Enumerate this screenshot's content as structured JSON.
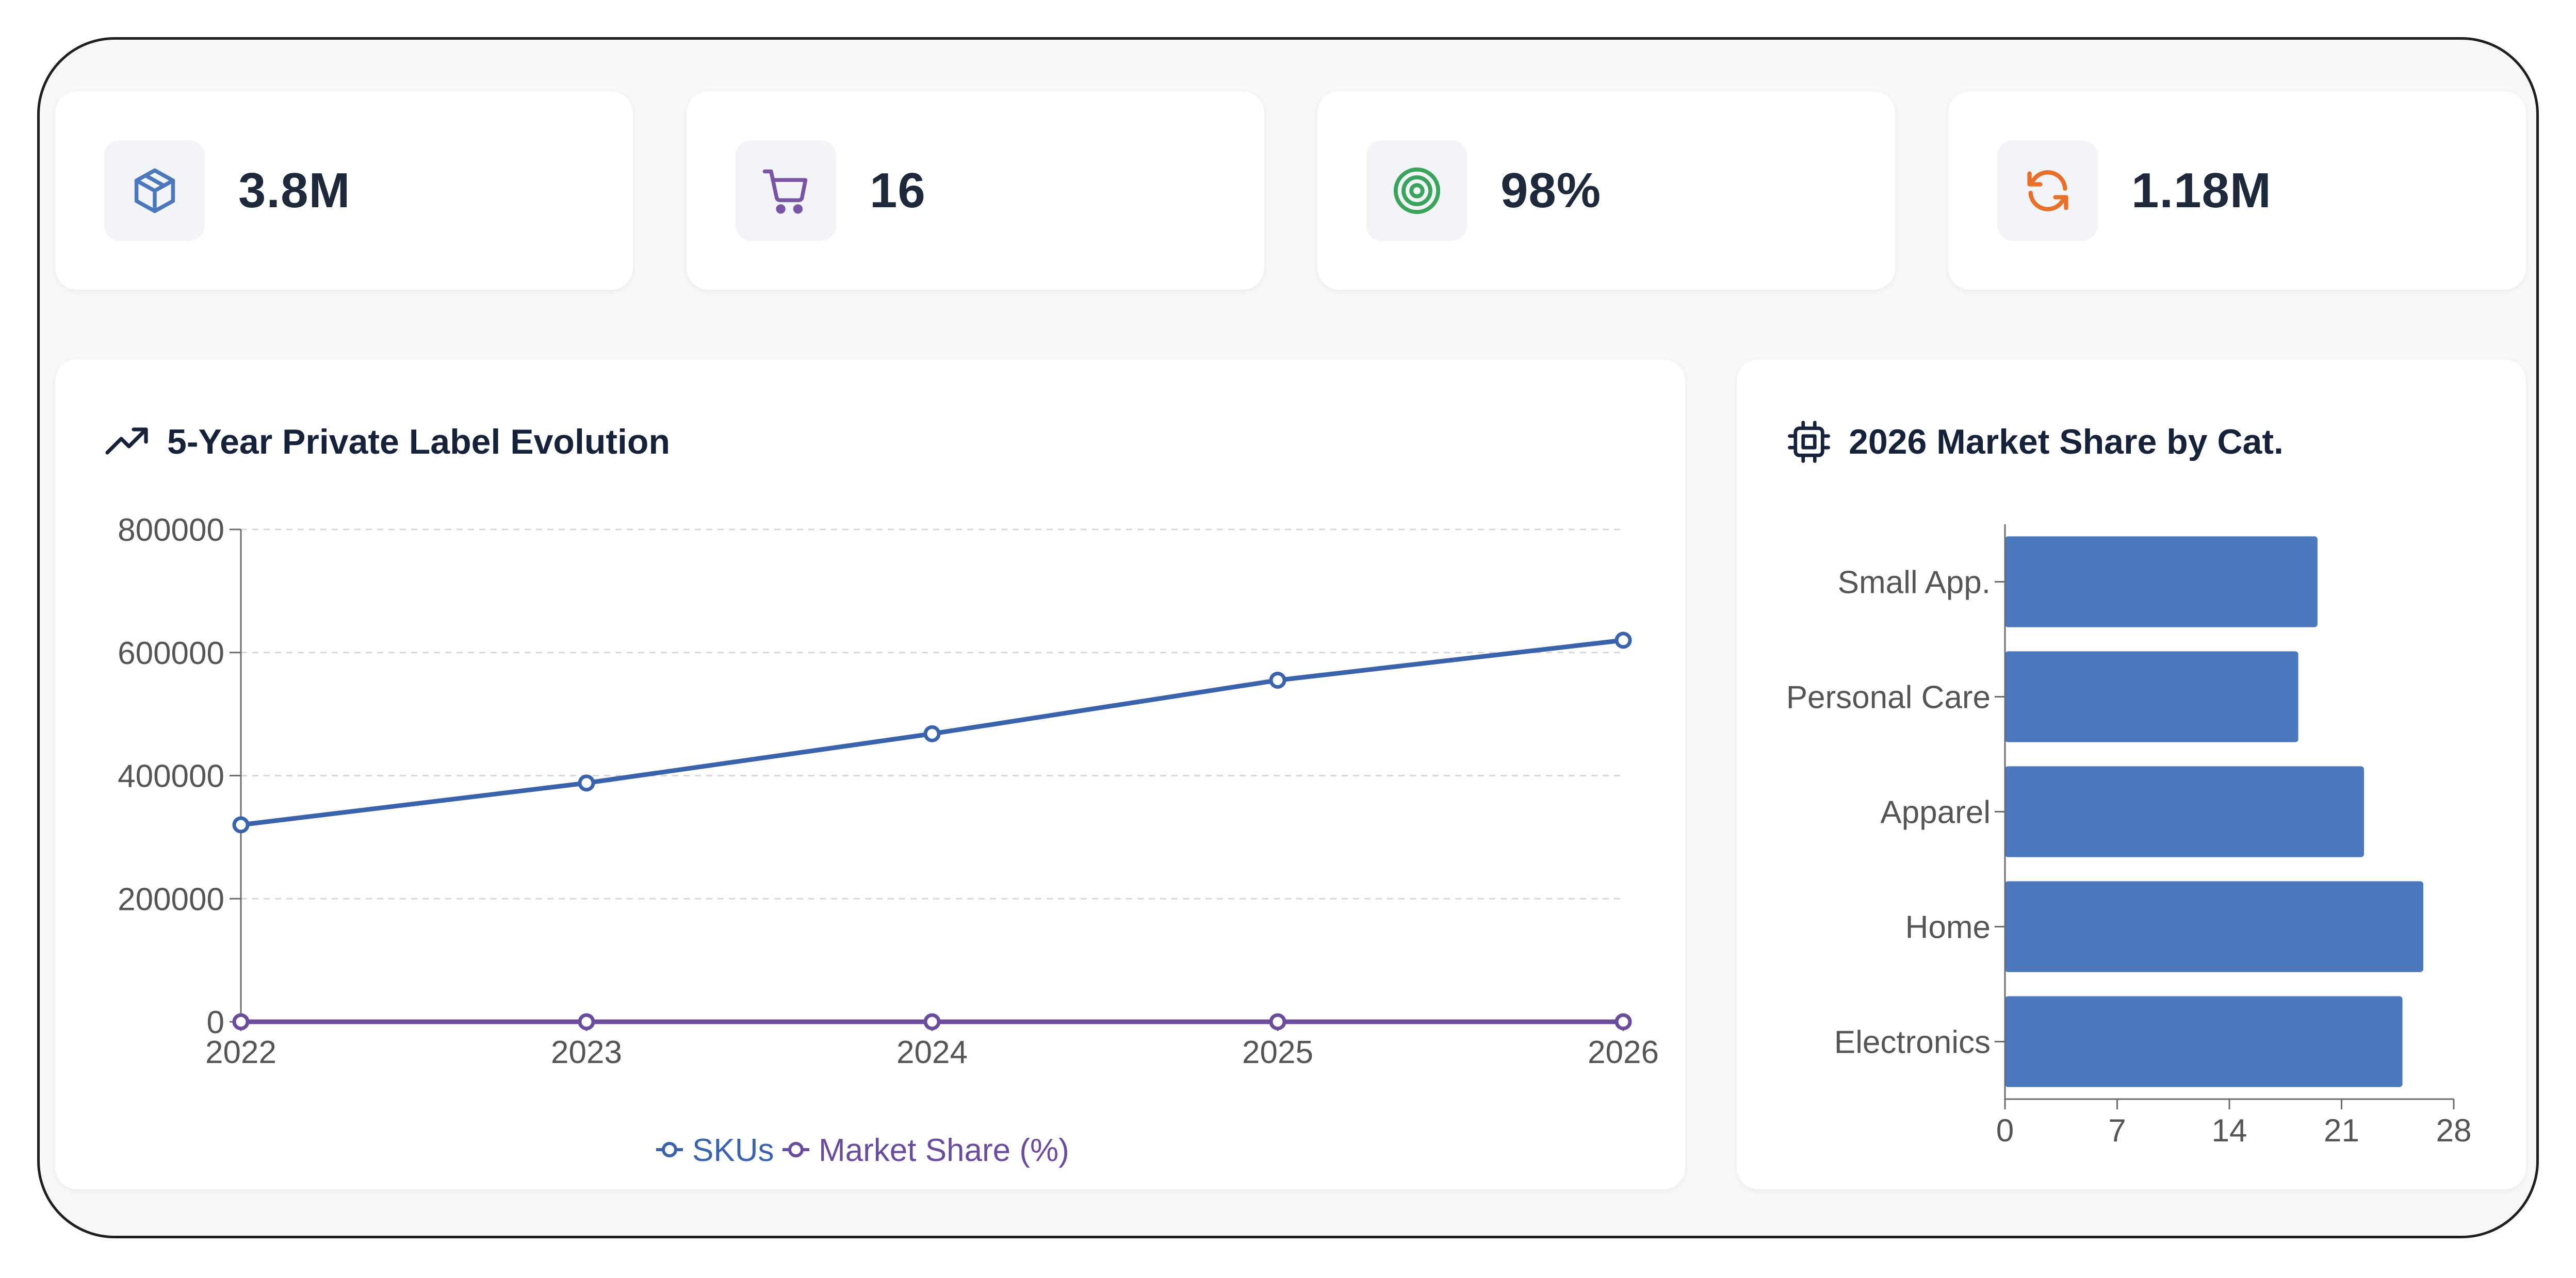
{
  "kpis": [
    {
      "icon": "package-icon",
      "value": "3.8M",
      "color": "#4a78bb"
    },
    {
      "icon": "cart-icon",
      "value": "16",
      "color": "#7a55a6"
    },
    {
      "icon": "target-icon",
      "value": "98%",
      "color": "#3aa45c"
    },
    {
      "icon": "refresh-icon",
      "value": "1.18M",
      "color": "#e8702a"
    }
  ],
  "line_panel": {
    "title": "5-Year Private Label Evolution",
    "icon": "trending-up-icon"
  },
  "bar_panel": {
    "title": "2026 Market Share by Cat.",
    "icon": "cpu-icon"
  },
  "chart_data": [
    {
      "type": "line",
      "title": "5-Year Private Label Evolution",
      "x": [
        "2022",
        "2023",
        "2024",
        "2025",
        "2026"
      ],
      "ylim": [
        0,
        800000
      ],
      "yticks": [
        0,
        200000,
        400000,
        600000,
        800000
      ],
      "grid": true,
      "legend": "bottom",
      "series": [
        {
          "name": "SKUs",
          "values": [
            320000,
            388000,
            468000,
            555000,
            620000
          ],
          "color": "#3a63ab"
        },
        {
          "name": "Market Share (%)",
          "values": [
            18,
            20,
            22,
            23,
            25
          ],
          "color": "#6a4c9c"
        }
      ]
    },
    {
      "type": "bar",
      "orientation": "horizontal",
      "title": "2026 Market Share by Cat.",
      "categories": [
        "Small App.",
        "Personal Care",
        "Apparel",
        "Home",
        "Electronics"
      ],
      "values": [
        19.5,
        18.3,
        22.4,
        26.1,
        24.8
      ],
      "xlim": [
        0,
        28
      ],
      "xticks": [
        0,
        7,
        14,
        21,
        28
      ],
      "color": "#4c78bd",
      "grid": false
    }
  ]
}
